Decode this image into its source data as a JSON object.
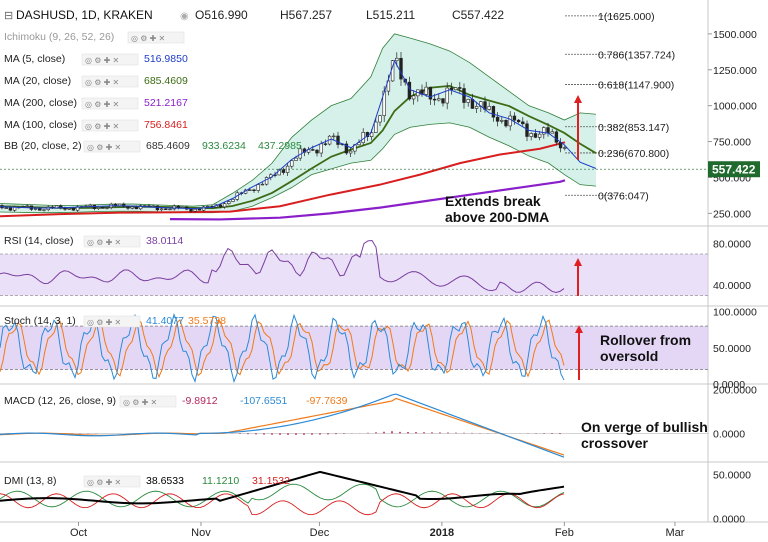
{
  "header": {
    "symbol": "DASHUSD, 1D, KRAKEN",
    "ohlc": {
      "o": "O516.990",
      "h": "H567.257",
      "l": "L515.211",
      "c": "C557.422"
    }
  },
  "legend": [
    {
      "label": "Ichimoku (9, 26, 52, 26)",
      "values": []
    },
    {
      "label": "MA (5, close)",
      "values": [
        {
          "v": "516.9850",
          "color": "#1e3cc8"
        }
      ]
    },
    {
      "label": "MA (20, close)",
      "values": [
        {
          "v": "685.4609",
          "color": "#3d6b14"
        }
      ]
    },
    {
      "label": "MA (200, close)",
      "values": [
        {
          "v": "521.2167",
          "color": "#8a1fc9"
        }
      ]
    },
    {
      "label": "MA (100, close)",
      "values": [
        {
          "v": "756.8461",
          "color": "#d81e1e"
        }
      ]
    },
    {
      "label": "BB (20, close, 2)",
      "values": [
        {
          "v": "685.4609",
          "color": "#333333"
        },
        {
          "v": "933.6234",
          "color": "#2b8a3e"
        },
        {
          "v": "437.2985",
          "color": "#2b8a3e"
        }
      ]
    }
  ],
  "colors": {
    "up": "#26a69a",
    "down": "#333333",
    "ma5": "#1e3cc8",
    "ma20": "#3d6b14",
    "ma100": "#d81e1e",
    "ma200": "#8a1fc9",
    "bb": "#2f7f3a",
    "bbfill": "#cfeee6",
    "rsi": "#7b3fa0",
    "stochK": "#2b8ad6",
    "stochD": "#f07a1a",
    "band": "#d8c6f2",
    "macd": "#2b8ad6",
    "signal": "#f07a1a",
    "hist": "#b0295e",
    "price_tag": "#1f6b2e",
    "arrow": "#e02020",
    "dmiPlus": "#2b8a3e",
    "dmiMinus": "#d81e1e",
    "adx": "#000000"
  },
  "price_axis": {
    "ticks": [
      "1500.000",
      "1250.000",
      "1000.000",
      "750.000",
      "500.000",
      "250.000"
    ],
    "last": "557.422"
  },
  "fibs": [
    {
      "label": "1(1625.000)",
      "value": 1625
    },
    {
      "label": "0.786(1357.724)",
      "value": 1357.724
    },
    {
      "label": "0.618(1147.900)",
      "value": 1147.9
    },
    {
      "label": "0.382(853.147)",
      "value": 853.147
    },
    {
      "label": "0.236(670.800)",
      "value": 670.8
    },
    {
      "label": "0(376.047)",
      "value": 376.047
    }
  ],
  "annotations": {
    "price": "Extends break\nabove 200-DMA",
    "stoch": "Rollover from\noversold",
    "macd": "On verge of bullish\ncrossover"
  },
  "rsi": {
    "label": "RSI (14, close)",
    "value": "38.0114",
    "ticks": [
      "80.0000",
      "40.0000"
    ]
  },
  "stoch": {
    "label": "Stoch (14, 3, 1)",
    "k": "41.4077",
    "d": "35.5738",
    "ticks": [
      "100.0000",
      "50.0000",
      "0.0000"
    ]
  },
  "macd": {
    "label": "MACD (12, 26, close, 9)",
    "hist": "-9.8912",
    "macd": "-107.6551",
    "signal": "-97.7639",
    "ticks": [
      "200.0000",
      "0.0000"
    ]
  },
  "dmi": {
    "label": "DMI (13, 8)",
    "adx": "38.6533",
    "plus": "11.1210",
    "minus": "31.1532",
    "ticks": [
      "50.0000",
      "0.0000"
    ]
  },
  "time_axis": [
    "Oct",
    "Nov",
    "Dec",
    "2018",
    "Feb",
    "Mar"
  ],
  "chart_data": {
    "type": "line",
    "title": "DASHUSD, 1D, KRAKEN",
    "x": [
      "2017-09-01",
      "2017-09-05",
      "2017-09-10",
      "2017-09-15",
      "2017-09-20",
      "2017-09-25",
      "2017-09-30",
      "2017-10-05",
      "2017-10-10",
      "2017-10-15",
      "2017-10-20",
      "2017-10-25",
      "2017-10-30",
      "2017-11-04",
      "2017-11-09",
      "2017-11-14",
      "2017-11-19",
      "2017-11-24",
      "2017-11-29",
      "2017-12-04",
      "2017-12-09",
      "2017-12-14",
      "2017-12-17",
      "2017-12-20",
      "2017-12-24",
      "2017-12-29",
      "2018-01-03",
      "2018-01-08",
      "2018-01-13",
      "2018-01-18",
      "2018-01-23",
      "2018-01-28",
      "2018-02-01",
      "2018-02-05",
      "2018-02-09"
    ],
    "series": [
      {
        "name": "DASHUSD close",
        "values": [
          305,
          300,
          295,
          290,
          285,
          285,
          290,
          295,
          300,
          298,
          290,
          285,
          280,
          290,
          350,
          430,
          500,
          620,
          700,
          760,
          700,
          800,
          1050,
          1300,
          1100,
          1050,
          1100,
          1050,
          940,
          900,
          820,
          800,
          720,
          600,
          557
        ]
      }
    ],
    "ylim": [
      190,
      1680
    ]
  }
}
